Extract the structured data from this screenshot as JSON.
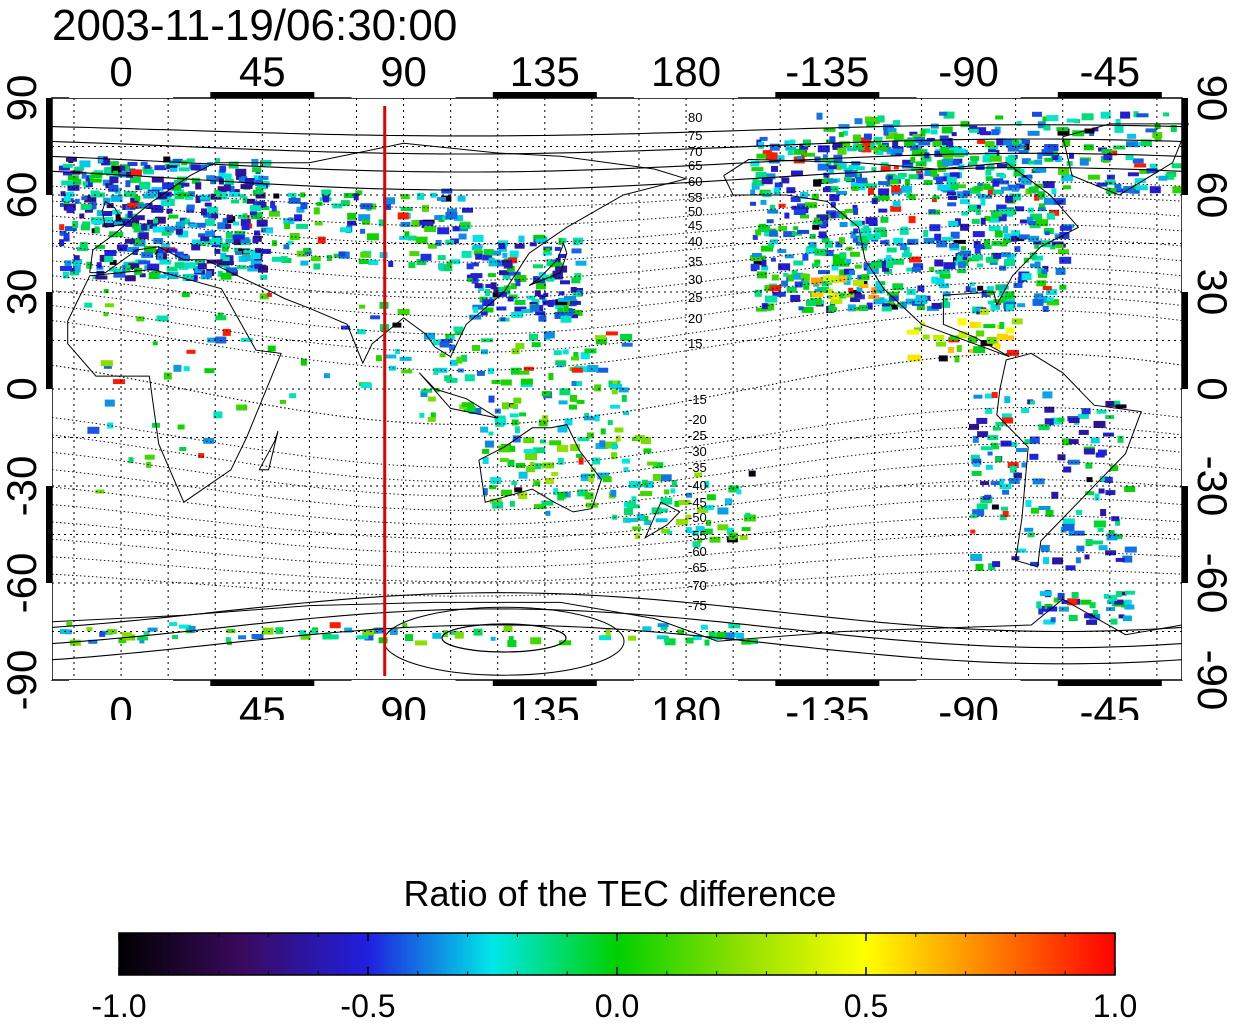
{
  "title": "2003-11-19/06:30:00",
  "map": {
    "x_ticks": [
      "0",
      "45",
      "90",
      "135",
      "180",
      "-135",
      "-90",
      "-45"
    ],
    "x_tick_lons": [
      0,
      45,
      90,
      135,
      180,
      225,
      270,
      315
    ],
    "y_ticks": [
      "90",
      "60",
      "30",
      "0",
      "-30",
      "-60",
      "-90"
    ],
    "y_tick_lats": [
      90,
      60,
      30,
      0,
      -30,
      -60,
      -90
    ],
    "lon_range": [
      -22,
      338
    ],
    "lat_range": [
      -90,
      90
    ],
    "grid_step_deg": 15,
    "grid_lines": "dotted",
    "marker_line_lon": 84,
    "marker_line_color": "#e00000",
    "contour_labels_north": [
      "80",
      "75",
      "70",
      "65",
      "60",
      "55",
      "50",
      "45",
      "40",
      "35",
      "30",
      "25",
      "20",
      "15"
    ],
    "contour_labels_south": [
      "-15",
      "-20",
      "-25",
      "-30",
      "-35",
      "-40",
      "-45",
      "-50",
      "-55",
      "-60",
      "-65",
      "-70",
      "-75"
    ]
  },
  "colorbar": {
    "title": "Ratio of the TEC difference",
    "ticks": [
      "-1.0",
      "-0.5",
      "0.0",
      "0.5",
      "1.0"
    ],
    "range": [
      -1.0,
      1.0
    ],
    "colormap": [
      "#000000",
      "#3a0a5e",
      "#2020e0",
      "#00e8e8",
      "#00d000",
      "#90e000",
      "#ffff00",
      "#ff8000",
      "#ff0000"
    ]
  }
}
